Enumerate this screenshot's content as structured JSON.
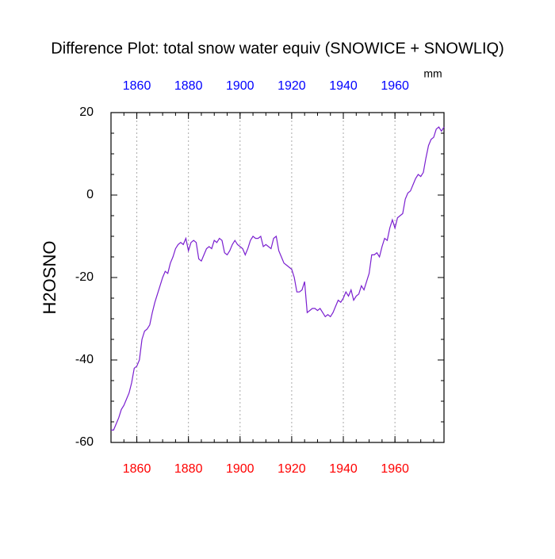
{
  "chart_data": {
    "type": "line",
    "title": "Difference Plot: total snow water equiv (SNOWICE + SNOWLIQ)",
    "ylabel": "H2OSNO",
    "units": "mm",
    "x": [
      1850,
      1851,
      1852,
      1853,
      1854,
      1855,
      1856,
      1857,
      1858,
      1859,
      1860,
      1861,
      1862,
      1863,
      1864,
      1865,
      1866,
      1867,
      1868,
      1869,
      1870,
      1871,
      1872,
      1873,
      1874,
      1875,
      1876,
      1877,
      1878,
      1879,
      1880,
      1881,
      1882,
      1883,
      1884,
      1885,
      1886,
      1887,
      1888,
      1889,
      1890,
      1891,
      1892,
      1893,
      1894,
      1895,
      1896,
      1897,
      1898,
      1899,
      1900,
      1901,
      1902,
      1903,
      1904,
      1905,
      1906,
      1907,
      1908,
      1909,
      1910,
      1911,
      1912,
      1913,
      1914,
      1915,
      1916,
      1917,
      1918,
      1919,
      1920,
      1921,
      1922,
      1923,
      1924,
      1925,
      1926,
      1927,
      1928,
      1929,
      1930,
      1931,
      1932,
      1933,
      1934,
      1935,
      1936,
      1937,
      1938,
      1939,
      1940,
      1941,
      1942,
      1943,
      1944,
      1945,
      1946,
      1947,
      1948,
      1949,
      1950,
      1951,
      1952,
      1953,
      1954,
      1955,
      1956,
      1957,
      1958,
      1959,
      1960,
      1961,
      1962,
      1963,
      1964,
      1965,
      1966,
      1967,
      1968,
      1969,
      1970,
      1971,
      1972,
      1973,
      1974,
      1975,
      1976,
      1977,
      1978,
      1979
    ],
    "series": [
      {
        "color": "#7a1fd0",
        "values": [
          -57,
          -57,
          -55.5,
          -54,
          -52,
          -51,
          -49.5,
          -48,
          -45.5,
          -42,
          -41.5,
          -40,
          -35,
          -33,
          -32.5,
          -31.5,
          -28.5,
          -26,
          -24,
          -22,
          -20,
          -18.5,
          -19,
          -16.5,
          -15,
          -13,
          -12,
          -11.5,
          -12,
          -10.5,
          -13.5,
          -11.5,
          -11,
          -11.5,
          -15.5,
          -16,
          -14.5,
          -13,
          -12.5,
          -13,
          -11,
          -11.5,
          -10.5,
          -11,
          -14,
          -14.5,
          -13.5,
          -12,
          -11,
          -12,
          -12.5,
          -13,
          -14.5,
          -13,
          -11,
          -10,
          -10.5,
          -10.5,
          -10,
          -12.5,
          -12,
          -12.5,
          -13,
          -10.5,
          -10,
          -13.5,
          -15,
          -16.5,
          -17,
          -17.5,
          -18,
          -20,
          -23.5,
          -23.5,
          -23,
          -21,
          -28.5,
          -28,
          -27.5,
          -27.5,
          -28,
          -27.5,
          -28.5,
          -29.5,
          -29,
          -29.5,
          -28.5,
          -27,
          -25.5,
          -26,
          -25,
          -23.5,
          -24.5,
          -23,
          -25.5,
          -24.5,
          -24,
          -22,
          -23,
          -21,
          -19,
          -14.5,
          -14.5,
          -14,
          -15,
          -12.5,
          -10.5,
          -11,
          -8,
          -6,
          -8,
          -5.5,
          -5,
          -4.5,
          -1,
          0.5,
          1,
          2.5,
          4,
          5,
          4.5,
          5.5,
          9,
          12,
          13.5,
          14,
          16,
          16.5,
          15.5,
          16.5
        ]
      }
    ],
    "xlim": [
      1850,
      1979
    ],
    "xticks": [
      1860,
      1880,
      1900,
      1920,
      1940,
      1960
    ],
    "ylim": [
      -60,
      20
    ],
    "yticks": [
      -60,
      -40,
      -20,
      0,
      20
    ],
    "minor_step": {
      "x": 5,
      "y": 5
    },
    "xtick_color_bottom": "#ff0000",
    "xtick_color_top": "#0000ff",
    "grid": "x"
  }
}
